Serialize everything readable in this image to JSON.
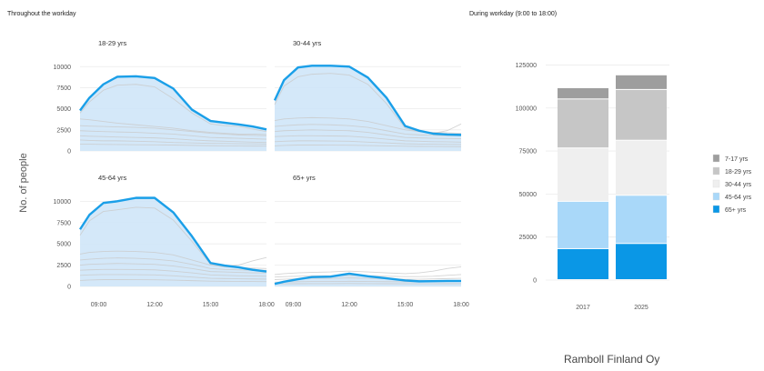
{
  "header": {
    "left_title": "Throughout the workday",
    "right_title": "During workday (9:00 to 18:00)"
  },
  "footer": {
    "credit": "Ramboll Finland Oy"
  },
  "colors": {
    "highlight_line": "#1a9fe8",
    "highlight_fill": "#cfe6f8",
    "background_lines": "#c9c9c9",
    "grid": "#ececec"
  },
  "chart_data": [
    {
      "type": "area",
      "layout": "small-multiples-2x2",
      "ylabel": "No. of people",
      "x_ticks": [
        "09:00",
        "12:00",
        "15:00",
        "18:00"
      ],
      "x": [
        8,
        8.5,
        9.25,
        10,
        11,
        12,
        13,
        14,
        15,
        15.75,
        16.5,
        17.25,
        18
      ],
      "ylim": [
        0,
        11000
      ],
      "y_ticks": [
        0,
        2500,
        5000,
        7500,
        10000
      ],
      "grid": true,
      "panels": [
        {
          "label": "18-29 yrs",
          "highlight": [
            4800,
            6300,
            7900,
            8800,
            8850,
            8650,
            7400,
            4900,
            3550,
            3350,
            3150,
            2900,
            2550
          ],
          "upper": [
            4900,
            6450,
            8050,
            8950,
            9000,
            8800,
            7550,
            5050,
            3700,
            3450,
            3250,
            3000,
            2650
          ],
          "background_lines": [
            [
              4500,
              5800,
              7200,
              7800,
              7900,
              7600,
              6200,
              4500,
              3200,
              3000,
              2900,
              2600,
              2300
            ],
            [
              3800,
              3700,
              3500,
              3300,
              3100,
              2900,
              2700,
              2400,
              2200,
              2100,
              2000,
              2000,
              1950
            ],
            [
              3000,
              2950,
              2900,
              2850,
              2800,
              2700,
              2500,
              2300,
              2100,
              2000,
              1900,
              1850,
              1800
            ],
            [
              2400,
              2350,
              2300,
              2250,
              2200,
              2100,
              2000,
              1800,
              1600,
              1550,
              1500,
              1450,
              1400
            ],
            [
              1800,
              1750,
              1700,
              1650,
              1600,
              1550,
              1450,
              1300,
              1200,
              1150,
              1100,
              1050,
              1000
            ],
            [
              1300,
              1250,
              1200,
              1200,
              1150,
              1100,
              1000,
              950,
              900,
              880,
              860,
              840,
              820
            ],
            [
              800,
              800,
              780,
              760,
              740,
              720,
              700,
              660,
              620,
              600,
              590,
              580,
              570
            ]
          ]
        },
        {
          "label": "30-44 yrs",
          "highlight": [
            6000,
            8400,
            9900,
            10100,
            10100,
            10000,
            8700,
            6300,
            2950,
            2400,
            2050,
            1950,
            1900
          ],
          "upper": [
            6150,
            8550,
            10050,
            10250,
            10250,
            10150,
            8850,
            6450,
            3100,
            2550,
            2200,
            2100,
            2050
          ],
          "background_lines": [
            [
              5500,
              7700,
              8800,
              9100,
              9200,
              9000,
              7900,
              5600,
              2700,
              2300,
              2100,
              2400,
              3200
            ],
            [
              3600,
              3800,
              3900,
              3950,
              3900,
              3800,
              3500,
              3000,
              2500,
              2300,
              2200,
              2150,
              2100
            ],
            [
              2900,
              3000,
              3100,
              3150,
              3100,
              3000,
              2800,
              2400,
              2000,
              1900,
              1850,
              1800,
              1800
            ],
            [
              2300,
              2400,
              2450,
              2500,
              2450,
              2400,
              2200,
              1900,
              1600,
              1550,
              1500,
              1480,
              1450
            ],
            [
              1700,
              1750,
              1800,
              1800,
              1780,
              1750,
              1600,
              1400,
              1200,
              1150,
              1100,
              1080,
              1050
            ],
            [
              1100,
              1150,
              1200,
              1200,
              1180,
              1150,
              1050,
              950,
              850,
              820,
              800,
              780,
              760
            ],
            [
              600,
              650,
              700,
              700,
              690,
              680,
              640,
              600,
              560,
              540,
              530,
              520,
              510
            ]
          ]
        },
        {
          "label": "45-64 yrs",
          "highlight": [
            6700,
            8400,
            9800,
            10000,
            10400,
            10400,
            8700,
            5900,
            2750,
            2450,
            2250,
            1950,
            1750
          ],
          "upper": [
            6850,
            8550,
            9950,
            10150,
            10550,
            10550,
            8850,
            6050,
            2900,
            2600,
            2400,
            2100,
            1900
          ],
          "background_lines": [
            [
              6000,
              7700,
              8800,
              9000,
              9300,
              9200,
              7800,
              5300,
              2600,
              2400,
              2500,
              3000,
              3400
            ],
            [
              3800,
              4000,
              4100,
              4150,
              4100,
              4000,
              3700,
              3100,
              2500,
              2300,
              2200,
              2150,
              2100
            ],
            [
              3100,
              3200,
              3300,
              3350,
              3300,
              3200,
              3000,
              2600,
              2100,
              2000,
              1950,
              1900,
              1900
            ],
            [
              2500,
              2600,
              2650,
              2700,
              2650,
              2600,
              2400,
              2100,
              1750,
              1700,
              1650,
              1600,
              1600
            ],
            [
              1900,
              1950,
              2000,
              2000,
              1980,
              1950,
              1800,
              1600,
              1350,
              1300,
              1250,
              1230,
              1200
            ],
            [
              1300,
              1350,
              1400,
              1400,
              1380,
              1350,
              1250,
              1100,
              950,
              920,
              900,
              880,
              860
            ],
            [
              700,
              750,
              800,
              800,
              790,
              780,
              740,
              680,
              620,
              600,
              590,
              580,
              570
            ]
          ]
        },
        {
          "label": "65+ yrs",
          "highlight": [
            300,
            550,
            850,
            1100,
            1150,
            1500,
            1200,
            950,
            700,
            600,
            620,
            650,
            650
          ],
          "upper": [
            350,
            600,
            900,
            1150,
            1200,
            1550,
            1250,
            1000,
            750,
            650,
            670,
            700,
            700
          ],
          "background_lines": [
            [
              1400,
              1500,
              1600,
              1650,
              1700,
              1800,
              1700,
              1600,
              1500,
              1600,
              1800,
              2100,
              2300
            ],
            [
              1100,
              1150,
              1200,
              1250,
              1250,
              1300,
              1250,
              1200,
              1150,
              1150,
              1200,
              1300,
              1400
            ],
            [
              800,
              850,
              900,
              950,
              950,
              1000,
              950,
              900,
              850,
              850,
              880,
              920,
              950
            ],
            [
              500,
              520,
              550,
              580,
              580,
              600,
              580,
              560,
              540,
              540,
              550,
              570,
              580
            ],
            [
              300,
              310,
              320,
              330,
              330,
              340,
              330,
              320,
              310,
              310,
              315,
              320,
              325
            ]
          ]
        }
      ]
    },
    {
      "type": "bar",
      "stacked": true,
      "categories": [
        "2017",
        "2025"
      ],
      "ylim": [
        0,
        130000
      ],
      "y_ticks": [
        0,
        25000,
        50000,
        75000,
        100000,
        125000
      ],
      "legend_position": "right",
      "series": [
        {
          "name": "65+ yrs",
          "color": "#0a97e6",
          "values": [
            18000,
            21000
          ]
        },
        {
          "name": "45-64 yrs",
          "color": "#a9d8f9",
          "values": [
            27500,
            28000
          ]
        },
        {
          "name": "30-44 yrs",
          "color": "#efefef",
          "values": [
            31000,
            32000
          ]
        },
        {
          "name": "18-29 yrs",
          "color": "#c6c6c6",
          "values": [
            28500,
            29500
          ]
        },
        {
          "name": "7-17 yrs",
          "color": "#9e9e9e",
          "values": [
            6500,
            8500
          ]
        }
      ],
      "legend_order": [
        "7-17 yrs",
        "18-29 yrs",
        "30-44 yrs",
        "45-64 yrs",
        "65+ yrs"
      ]
    }
  ]
}
